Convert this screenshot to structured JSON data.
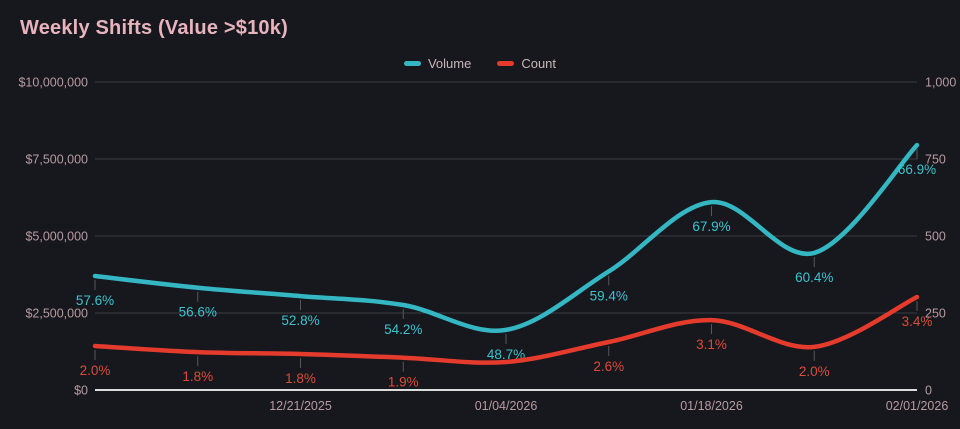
{
  "title": "Weekly Shifts (Value >$10k)",
  "colors": {
    "background": "#16181d",
    "title_text": "#e7b3bd",
    "axis_text": "#b89aa0",
    "legend_text": "#c9b6b8",
    "gridline": "#3a3d43",
    "axis_line": "#dcdcdc",
    "point_tick": "#54575c",
    "volume": "#35b7c3",
    "count": "#e43b2d",
    "volume_label": "#3cc3cf",
    "count_label": "#de4a3a"
  },
  "legend": {
    "items": [
      {
        "label": "Volume",
        "color": "#35b7c3"
      },
      {
        "label": "Count",
        "color": "#e43b2d"
      }
    ]
  },
  "chart_data": {
    "type": "line",
    "title": "Weekly Shifts (Value >$10k)",
    "smooth": true,
    "grid": true,
    "legend_position": "top-center",
    "num_points": 9,
    "x_tick_labels": [
      "12/21/2025",
      "01/04/2026",
      "01/18/2026",
      "02/01/2026"
    ],
    "x_tick_indices": [
      2,
      4,
      6,
      8
    ],
    "left_axis": {
      "min": 0,
      "max": 10000000,
      "ticks": [
        "$0",
        "$2,500,000",
        "$5,000,000",
        "$7,500,000",
        "$10,000,000"
      ]
    },
    "right_axis": {
      "min": 0,
      "max": 1000,
      "ticks": [
        "0",
        "250",
        "500",
        "750",
        "1,000"
      ]
    },
    "series": [
      {
        "name": "Volume",
        "axis": "left",
        "color": "#35b7c3",
        "label_color": "#3cc3cf",
        "values": [
          3700000,
          3320000,
          3050000,
          2760000,
          1950000,
          3850000,
          6100000,
          4450000,
          7950000
        ],
        "point_labels": [
          "57.6%",
          "56.6%",
          "52.8%",
          "54.2%",
          "48.7%",
          "59.4%",
          "67.9%",
          "60.4%",
          "66.9%"
        ]
      },
      {
        "name": "Count",
        "axis": "right",
        "color": "#e43b2d",
        "label_color": "#de4a3a",
        "values": [
          143,
          123,
          117,
          105,
          91,
          156,
          227,
          140,
          302
        ],
        "point_labels": [
          "2.0%",
          "1.8%",
          "1.8%",
          "1.9%",
          null,
          "2.6%",
          "3.1%",
          "2.0%",
          "3.4%"
        ]
      }
    ]
  }
}
